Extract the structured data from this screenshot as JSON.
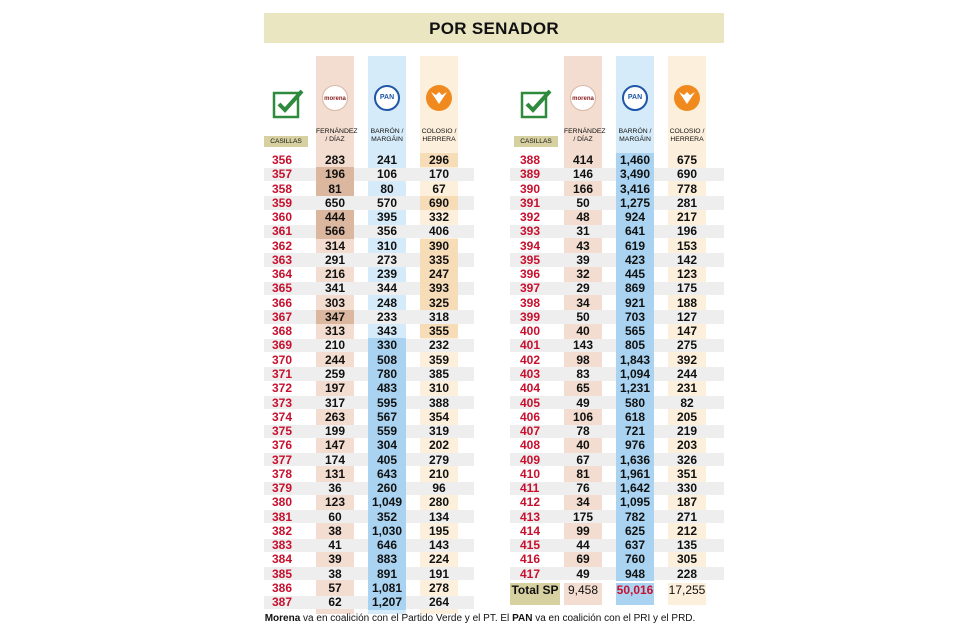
{
  "title": "POR SENADOR",
  "header": {
    "casillas": "CASILLAS",
    "morena_logo": "morena",
    "pan_logo": "PAN",
    "morena_col": "FERNÁNDEZ / DÍAZ",
    "pan_col": "BARRÓN / MARGÁIN",
    "pri_col": "COLOSIO / HERRERA"
  },
  "colors": {
    "morena": "#dcb7a0",
    "pan": "#a9d3f1",
    "pri": "#f7dcb8",
    "casilla_num": "#c8102e",
    "title_bg": "#ebe6c2"
  },
  "left_rows": [
    {
      "c": "356",
      "m": "283",
      "p": "241",
      "r": "296",
      "w": "r"
    },
    {
      "c": "357",
      "m": "196",
      "p": "106",
      "r": "170",
      "w": "m"
    },
    {
      "c": "358",
      "m": "81",
      "p": "80",
      "r": "67",
      "w": "m"
    },
    {
      "c": "359",
      "m": "650",
      "p": "570",
      "r": "690",
      "w": "r"
    },
    {
      "c": "360",
      "m": "444",
      "p": "395",
      "r": "332",
      "w": "m"
    },
    {
      "c": "361",
      "m": "566",
      "p": "356",
      "r": "406",
      "w": "m"
    },
    {
      "c": "362",
      "m": "314",
      "p": "310",
      "r": "390",
      "w": "r"
    },
    {
      "c": "363",
      "m": "291",
      "p": "273",
      "r": "335",
      "w": "r"
    },
    {
      "c": "364",
      "m": "216",
      "p": "239",
      "r": "247",
      "w": "r"
    },
    {
      "c": "365",
      "m": "341",
      "p": "344",
      "r": "393",
      "w": "r"
    },
    {
      "c": "366",
      "m": "303",
      "p": "248",
      "r": "325",
      "w": "r"
    },
    {
      "c": "367",
      "m": "347",
      "p": "233",
      "r": "318",
      "w": "m"
    },
    {
      "c": "368",
      "m": "313",
      "p": "343",
      "r": "355",
      "w": "r"
    },
    {
      "c": "369",
      "m": "210",
      "p": "330",
      "r": "232",
      "w": "p"
    },
    {
      "c": "370",
      "m": "244",
      "p": "508",
      "r": "359",
      "w": "p"
    },
    {
      "c": "371",
      "m": "259",
      "p": "780",
      "r": "385",
      "w": "p"
    },
    {
      "c": "372",
      "m": "197",
      "p": "483",
      "r": "310",
      "w": "p"
    },
    {
      "c": "373",
      "m": "317",
      "p": "595",
      "r": "388",
      "w": "p"
    },
    {
      "c": "374",
      "m": "263",
      "p": "567",
      "r": "354",
      "w": "p"
    },
    {
      "c": "375",
      "m": "199",
      "p": "559",
      "r": "319",
      "w": "p"
    },
    {
      "c": "376",
      "m": "147",
      "p": "304",
      "r": "202",
      "w": "p"
    },
    {
      "c": "377",
      "m": "174",
      "p": "405",
      "r": "279",
      "w": "p"
    },
    {
      "c": "378",
      "m": "131",
      "p": "643",
      "r": "210",
      "w": "p"
    },
    {
      "c": "379",
      "m": "36",
      "p": "260",
      "r": "96",
      "w": "p"
    },
    {
      "c": "380",
      "m": "123",
      "p": "1,049",
      "r": "280",
      "w": "p"
    },
    {
      "c": "381",
      "m": "60",
      "p": "352",
      "r": "134",
      "w": "p"
    },
    {
      "c": "382",
      "m": "38",
      "p": "1,030",
      "r": "195",
      "w": "p"
    },
    {
      "c": "383",
      "m": "41",
      "p": "646",
      "r": "143",
      "w": "p"
    },
    {
      "c": "384",
      "m": "39",
      "p": "883",
      "r": "224",
      "w": "p"
    },
    {
      "c": "385",
      "m": "38",
      "p": "891",
      "r": "191",
      "w": "p"
    },
    {
      "c": "386",
      "m": "57",
      "p": "1,081",
      "r": "278",
      "w": "p"
    },
    {
      "c": "387",
      "m": "62",
      "p": "1,207",
      "r": "264",
      "w": "p"
    }
  ],
  "right_rows": [
    {
      "c": "388",
      "m": "414",
      "p": "1,460",
      "r": "675",
      "w": "p"
    },
    {
      "c": "389",
      "m": "146",
      "p": "3,490",
      "r": "690",
      "w": "p"
    },
    {
      "c": "390",
      "m": "166",
      "p": "3,416",
      "r": "778",
      "w": "p"
    },
    {
      "c": "391",
      "m": "50",
      "p": "1,275",
      "r": "281",
      "w": "p"
    },
    {
      "c": "392",
      "m": "48",
      "p": "924",
      "r": "217",
      "w": "p"
    },
    {
      "c": "393",
      "m": "31",
      "p": "641",
      "r": "196",
      "w": "p"
    },
    {
      "c": "394",
      "m": "43",
      "p": "619",
      "r": "153",
      "w": "p"
    },
    {
      "c": "395",
      "m": "39",
      "p": "423",
      "r": "142",
      "w": "p"
    },
    {
      "c": "396",
      "m": "32",
      "p": "445",
      "r": "123",
      "w": "p"
    },
    {
      "c": "397",
      "m": "29",
      "p": "869",
      "r": "175",
      "w": "p"
    },
    {
      "c": "398",
      "m": "34",
      "p": "921",
      "r": "188",
      "w": "p"
    },
    {
      "c": "399",
      "m": "50",
      "p": "703",
      "r": "127",
      "w": "p"
    },
    {
      "c": "400",
      "m": "40",
      "p": "565",
      "r": "147",
      "w": "p"
    },
    {
      "c": "401",
      "m": "143",
      "p": "805",
      "r": "275",
      "w": "p"
    },
    {
      "c": "402",
      "m": "98",
      "p": "1,843",
      "r": "392",
      "w": "p"
    },
    {
      "c": "403",
      "m": "83",
      "p": "1,094",
      "r": "244",
      "w": "p"
    },
    {
      "c": "404",
      "m": "65",
      "p": "1,231",
      "r": "231",
      "w": "p"
    },
    {
      "c": "405",
      "m": "49",
      "p": "580",
      "r": "82",
      "w": "p"
    },
    {
      "c": "406",
      "m": "106",
      "p": "618",
      "r": "205",
      "w": "p"
    },
    {
      "c": "407",
      "m": "78",
      "p": "721",
      "r": "219",
      "w": "p"
    },
    {
      "c": "408",
      "m": "40",
      "p": "976",
      "r": "203",
      "w": "p"
    },
    {
      "c": "409",
      "m": "67",
      "p": "1,636",
      "r": "326",
      "w": "p"
    },
    {
      "c": "410",
      "m": "81",
      "p": "1,961",
      "r": "351",
      "w": "p"
    },
    {
      "c": "411",
      "m": "76",
      "p": "1,642",
      "r": "330",
      "w": "p"
    },
    {
      "c": "412",
      "m": "34",
      "p": "1,095",
      "r": "187",
      "w": "p"
    },
    {
      "c": "413",
      "m": "175",
      "p": "782",
      "r": "271",
      "w": "p"
    },
    {
      "c": "414",
      "m": "99",
      "p": "625",
      "r": "212",
      "w": "p"
    },
    {
      "c": "415",
      "m": "44",
      "p": "637",
      "r": "135",
      "w": "p"
    },
    {
      "c": "416",
      "m": "69",
      "p": "760",
      "r": "305",
      "w": "p"
    },
    {
      "c": "417",
      "m": "49",
      "p": "948",
      "r": "228",
      "w": "p"
    }
  ],
  "total": {
    "label": "Total SP",
    "morena": "9,458",
    "pan": "50,016",
    "pri": "17,255"
  },
  "footnote": {
    "morena_bold": "Morena",
    "text1": " va en coalición con el Partido Verde y el PT. El ",
    "pan_bold": "PAN",
    "text2": " va en coalición con el PRI y el PRD."
  }
}
